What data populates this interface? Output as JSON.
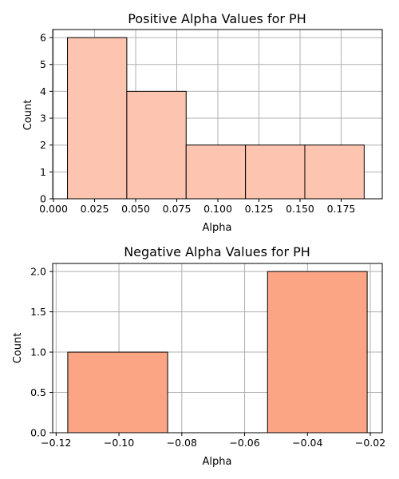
{
  "chart_data": [
    {
      "type": "bar",
      "subtype": "histogram",
      "title": "Positive Alpha Values for PH",
      "xlabel": "Alpha",
      "ylabel": "Count",
      "bin_edges": [
        0.0085,
        0.0446,
        0.0807,
        0.1168,
        0.1529,
        0.189
      ],
      "values": [
        6,
        4,
        2,
        2,
        2
      ],
      "xlim": [
        -0.0005,
        0.2
      ],
      "ylim": [
        0,
        6.3
      ],
      "xticks": [
        0.0,
        0.025,
        0.05,
        0.075,
        0.1,
        0.125,
        0.15,
        0.175
      ],
      "xtick_labels": [
        "0.000",
        "0.025",
        "0.050",
        "0.075",
        "0.100",
        "0.125",
        "0.150",
        "0.175"
      ],
      "yticks": [
        0,
        1,
        2,
        3,
        4,
        5,
        6
      ],
      "ytick_labels": [
        "0",
        "1",
        "2",
        "3",
        "4",
        "5",
        "6"
      ],
      "grid": true,
      "bar_color": "#fdc4b0",
      "edge_color": "#000000",
      "grid_color": "#b0b0b0"
    },
    {
      "type": "bar",
      "subtype": "histogram",
      "title": "Negative Alpha Values for PH",
      "xlabel": "Alpha",
      "ylabel": "Count",
      "bin_edges": [
        -0.1163,
        -0.0845,
        -0.0527,
        -0.021
      ],
      "values": [
        1,
        0,
        2
      ],
      "xlim": [
        -0.1211,
        -0.0162
      ],
      "ylim": [
        0,
        2.1
      ],
      "xticks": [
        -0.12,
        -0.1,
        -0.08,
        -0.06,
        -0.04,
        -0.02
      ],
      "xtick_labels": [
        "−0.12",
        "−0.10",
        "−0.08",
        "−0.06",
        "−0.04",
        "−0.02"
      ],
      "yticks": [
        0,
        0.5,
        1,
        1.5,
        2
      ],
      "ytick_labels": [
        "0.0",
        "0.5",
        "1.0",
        "1.5",
        "2.0"
      ],
      "grid": true,
      "bar_color": "#fca585",
      "edge_color": "#000000",
      "grid_color": "#b0b0b0"
    }
  ]
}
